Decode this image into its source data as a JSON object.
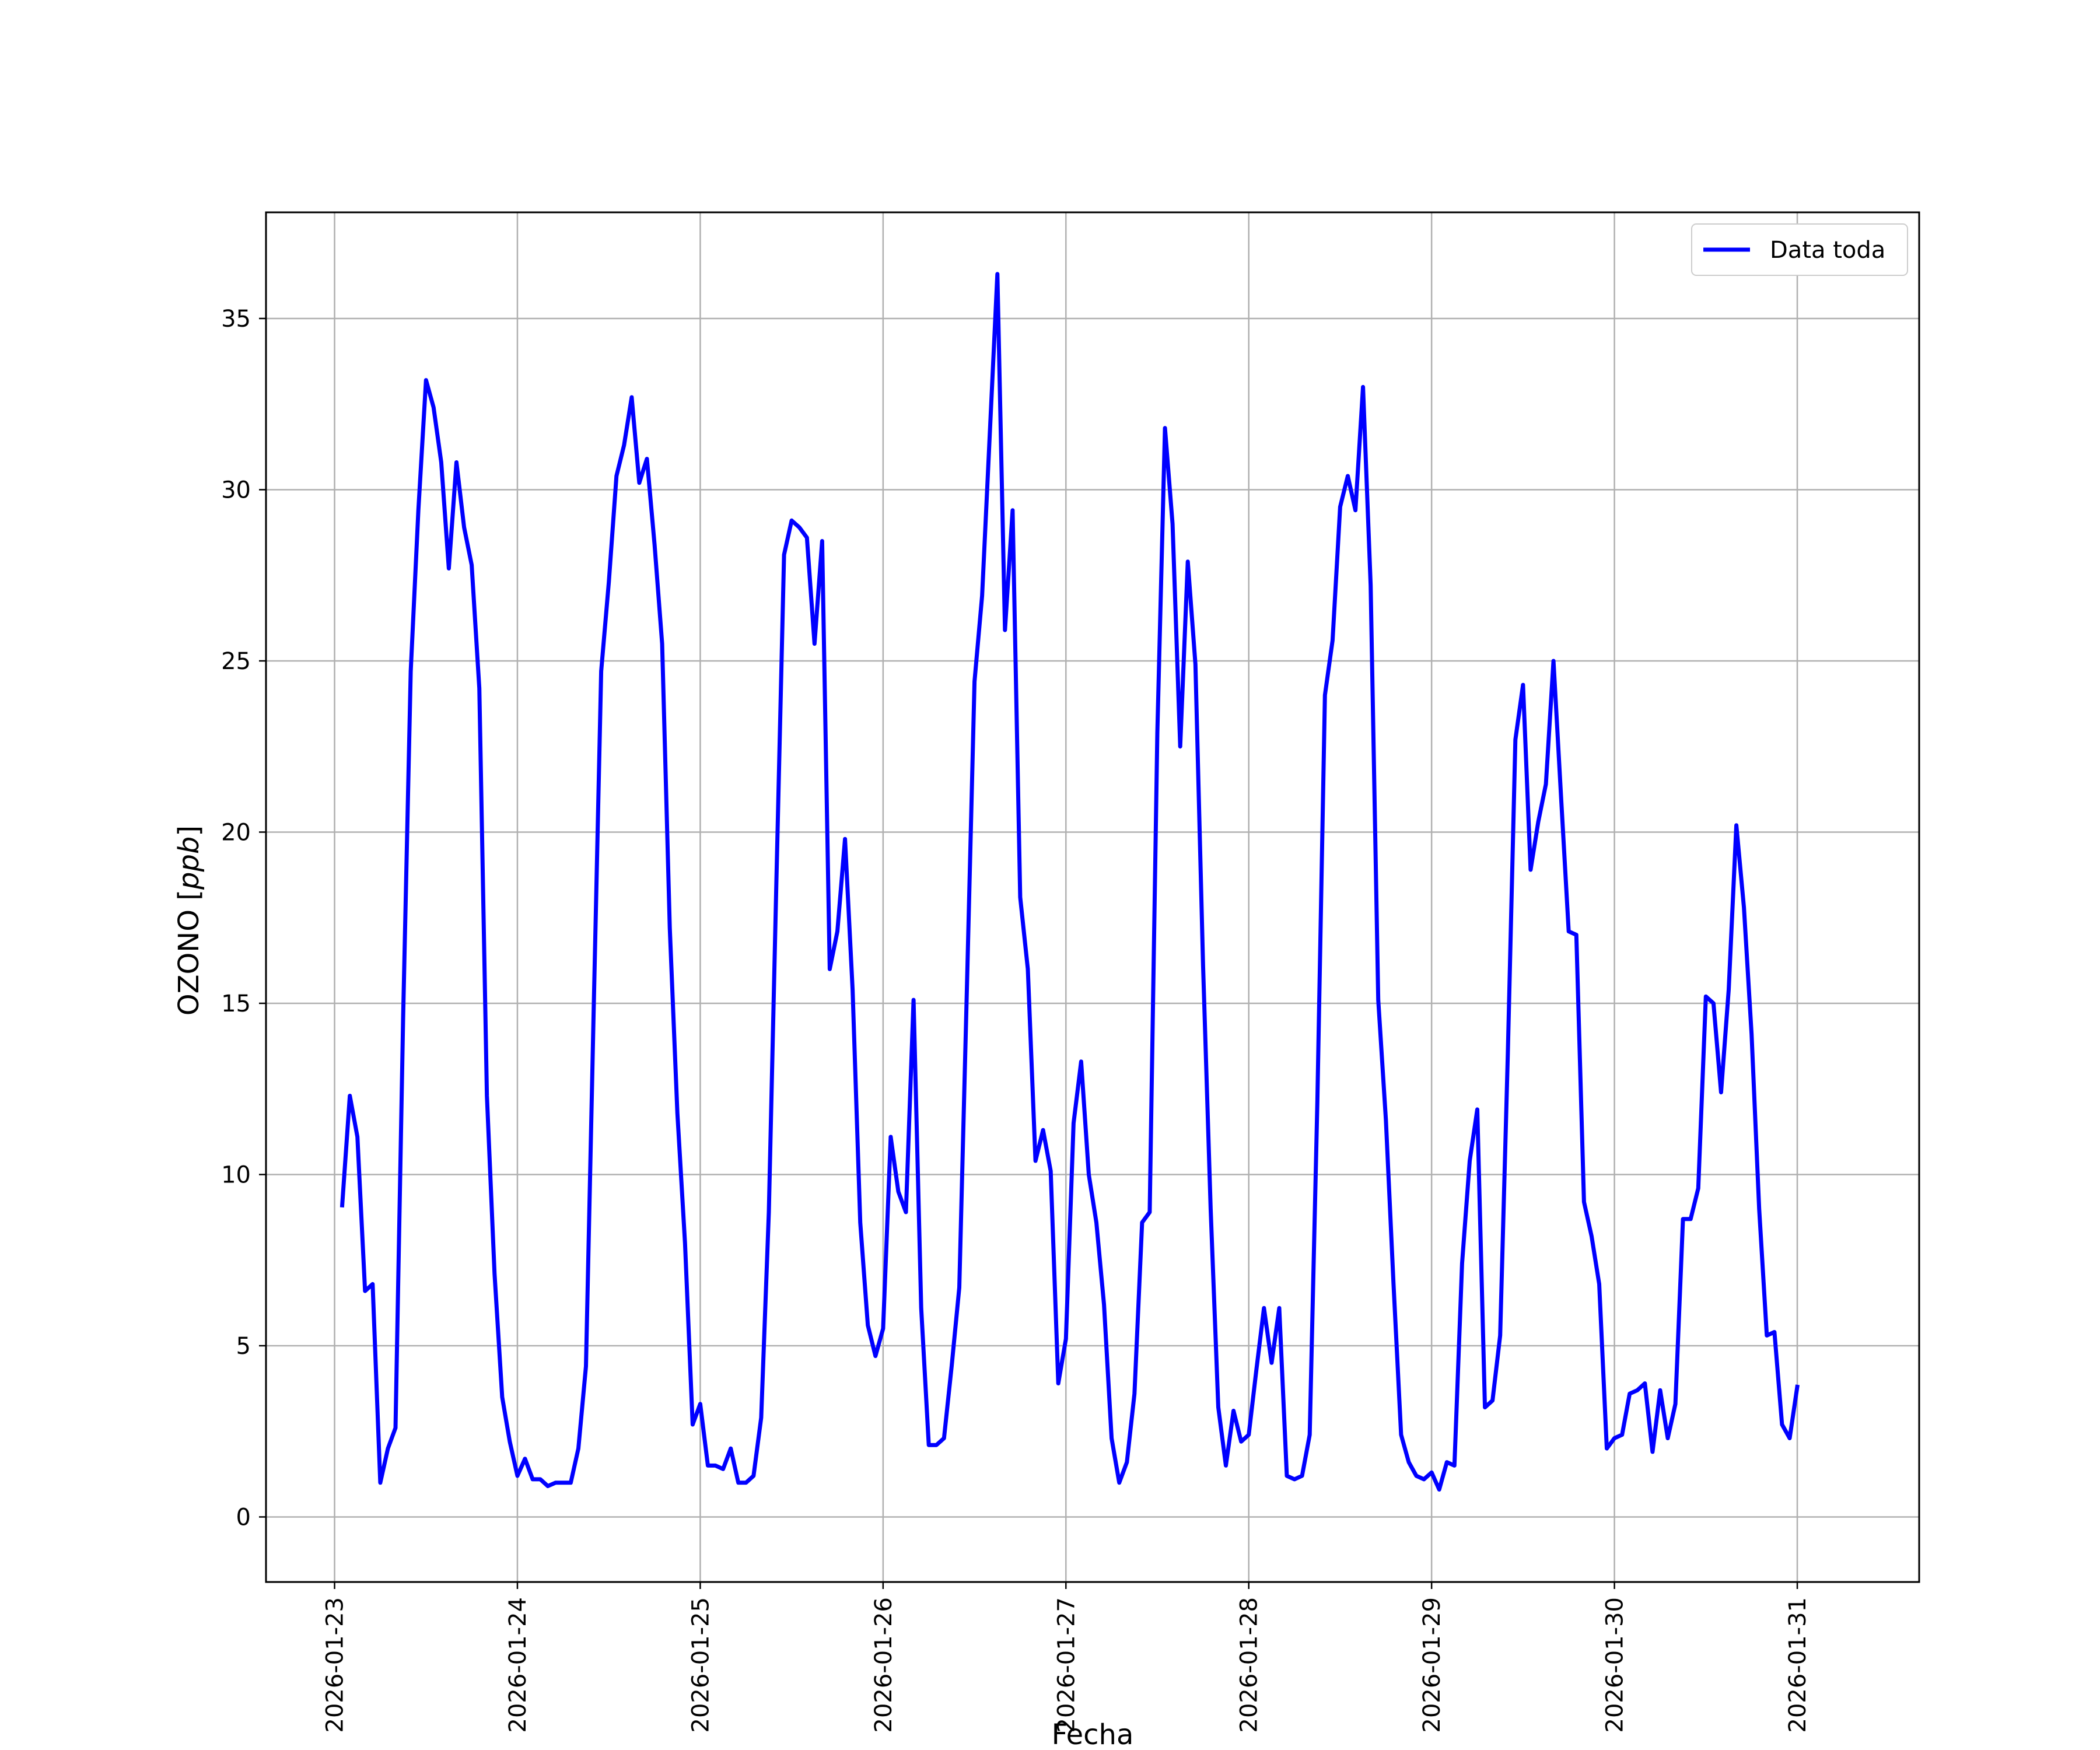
{
  "chart_data": {
    "type": "line",
    "title": "",
    "xlabel": "Fecha",
    "ylabel": "OZONO [ppb]",
    "ylabel_parts": {
      "prefix": "OZONO [",
      "unit": "ppb",
      "suffix": "]"
    },
    "xlim": [
      "2026-01-22T15:00",
      "2026-01-31T16:00"
    ],
    "ylim": [
      -1.9,
      38.1
    ],
    "x_ticks": [
      "2026-01-23",
      "2026-01-24",
      "2026-01-25",
      "2026-01-26",
      "2026-01-27",
      "2026-01-28",
      "2026-01-29",
      "2026-01-30",
      "2026-01-31"
    ],
    "y_ticks": [
      0,
      5,
      10,
      15,
      20,
      25,
      30,
      35
    ],
    "grid": true,
    "legend_position": "upper right",
    "x_start": "2026-01-23T01:00",
    "x_step_hours": 1,
    "series": [
      {
        "name": "Data toda",
        "color": "#0000ff",
        "values": [
          9.1,
          12.3,
          11.1,
          6.6,
          6.8,
          1.0,
          2.0,
          2.6,
          14.6,
          24.7,
          29.4,
          33.2,
          32.4,
          30.8,
          27.7,
          30.8,
          28.9,
          27.8,
          24.2,
          12.3,
          7.1,
          3.5,
          2.2,
          1.2,
          1.7,
          1.1,
          1.1,
          0.9,
          1.0,
          1.0,
          1.0,
          2.0,
          4.4,
          14.7,
          24.7,
          27.3,
          30.4,
          31.3,
          32.7,
          30.2,
          30.9,
          28.4,
          25.5,
          17.2,
          11.8,
          8.0,
          2.7,
          3.3,
          1.5,
          1.5,
          1.4,
          2.0,
          1.0,
          1.0,
          1.2,
          2.9,
          8.9,
          18.6,
          28.1,
          29.1,
          28.9,
          28.6,
          25.5,
          28.5,
          16.0,
          17.1,
          19.8,
          15.4,
          8.6,
          5.6,
          4.7,
          5.5,
          11.1,
          9.5,
          8.9,
          15.1,
          6.1,
          2.1,
          2.1,
          2.3,
          4.4,
          6.7,
          15.4,
          24.4,
          26.9,
          31.6,
          36.3,
          25.9,
          29.4,
          18.1,
          16.0,
          10.4,
          11.3,
          10.1,
          3.9,
          5.2,
          11.5,
          13.3,
          10.0,
          8.6,
          6.2,
          2.3,
          1.0,
          1.6,
          3.6,
          8.6,
          8.9,
          22.9,
          31.8,
          29.0,
          22.5,
          27.9,
          24.9,
          16.1,
          9.0,
          3.2,
          1.5,
          3.1,
          2.2,
          2.4,
          4.3,
          6.1,
          4.5,
          6.1,
          1.2,
          1.1,
          1.2,
          2.4,
          12.1,
          24.0,
          25.6,
          29.5,
          30.4,
          29.4,
          33.0,
          27.2,
          15.1,
          11.6,
          6.8,
          2.4,
          1.6,
          1.2,
          1.1,
          1.3,
          0.8,
          1.6,
          1.5,
          7.4,
          10.4,
          11.9,
          3.2,
          3.4,
          5.3,
          13.5,
          22.7,
          24.3,
          18.9,
          20.3,
          21.4,
          25.0,
          21.0,
          17.1,
          17.0,
          9.2,
          8.2,
          6.8,
          2.0,
          2.3,
          2.4,
          3.6,
          3.7,
          3.9,
          1.9,
          3.7,
          2.3,
          3.3,
          8.7,
          8.7,
          9.6,
          15.2,
          15.0,
          12.4,
          15.4,
          20.2,
          17.8,
          14.1,
          9.0,
          5.3,
          5.4,
          2.7,
          2.3,
          3.8
        ]
      }
    ]
  }
}
